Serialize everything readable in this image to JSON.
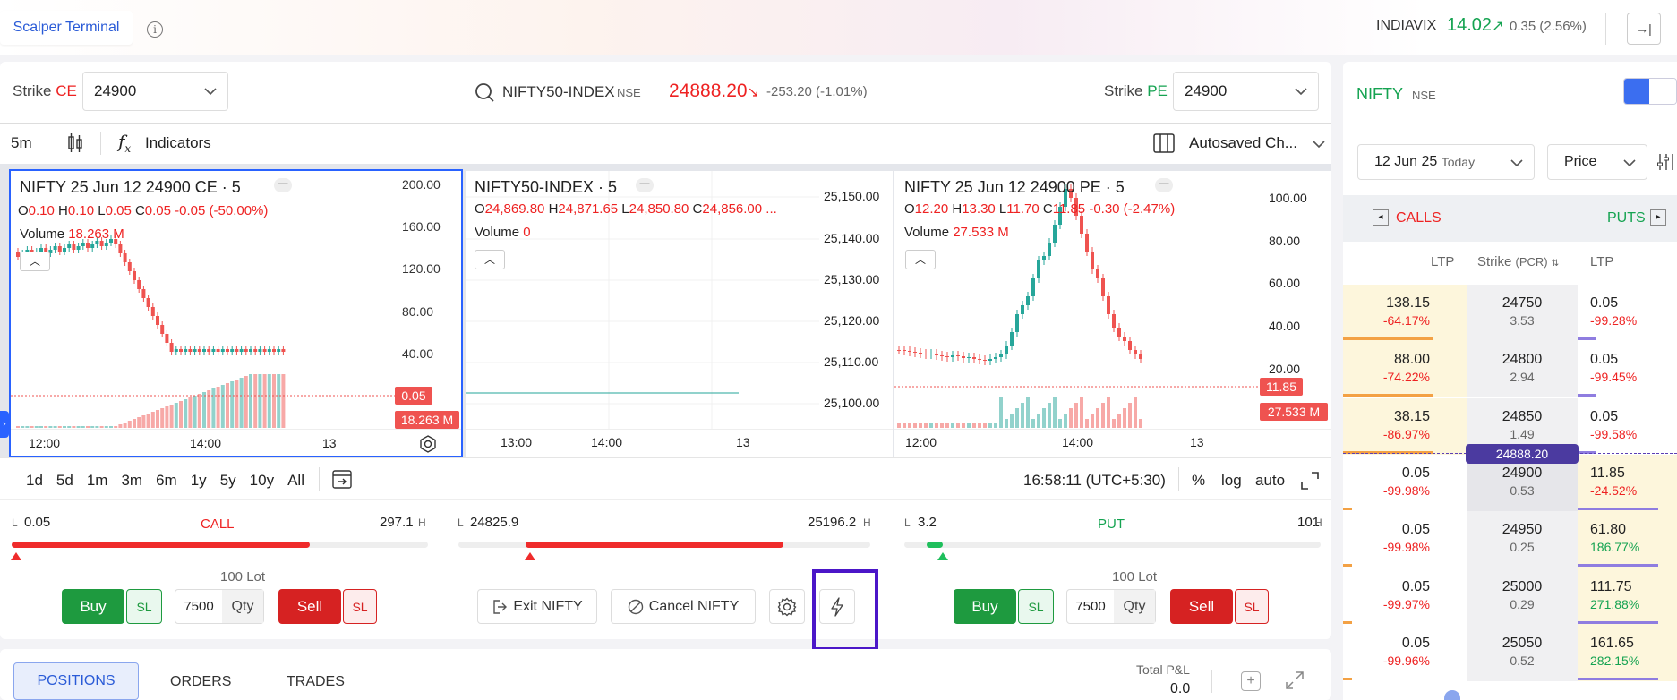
{
  "header": {
    "tab": "Scalper Terminal",
    "info_icon": "i",
    "vix_label": "INDIAVIX",
    "vix_value": "14.02",
    "vix_arrow": "↗",
    "vix_change": "0.35 (2.56%)",
    "collapse_icon": "→|"
  },
  "instrument_bar": {
    "strike_ce_label": "Strike",
    "ce": "CE",
    "strike_ce_value": "24900",
    "search_symbol": "NIFTY50-INDEX",
    "exchange": "NSE",
    "ltp": "24888.20",
    "ltp_arrow": "↘",
    "ltp_change": "-253.20 (-1.01%)",
    "strike_pe_label": "Strike",
    "pe": "PE",
    "strike_pe_value": "24900"
  },
  "toolbar": {
    "interval": "5m",
    "indicators": "Indicators",
    "layout": "Autosaved Ch..."
  },
  "charts": {
    "ce": {
      "title": "NIFTY 25 Jun 12 24900 CE · 5",
      "o": "0.10",
      "h": "0.10",
      "l": "0.05",
      "c": "0.05",
      "chg": "-0.05 (-50.00%)",
      "volume_label": "Volume",
      "volume_value": "18.263 M",
      "price_tag": "0.05",
      "vol_tag": "18.263 M",
      "yticks": [
        "200.00",
        "160.00",
        "120.00",
        "80.00",
        "40.00"
      ],
      "xticks": [
        "12:00",
        "14:00",
        "13"
      ]
    },
    "index": {
      "title": "NIFTY50-INDEX · 5",
      "o": "24,869.80",
      "h": "24,871.65",
      "l": "24,850.80",
      "c": "24,856.00 ...",
      "volume_label": "Volume",
      "volume_value": "0",
      "yticks": [
        "25,150.00",
        "25,140.00",
        "25,130.00",
        "25,120.00",
        "25,110.00",
        "25,100.00"
      ],
      "xticks": [
        "13:00",
        "14:00",
        "13"
      ]
    },
    "pe": {
      "title": "NIFTY 25 Jun 12 24900 PE · 5",
      "o": "12.20",
      "h": "13.30",
      "l": "11.70",
      "c": "11.85",
      "chg": "-0.30 (-2.47%)",
      "volume_label": "Volume",
      "volume_value": "27.533 M",
      "price_tag": "11.85",
      "vol_tag": "27.533 M",
      "yticks": [
        "100.00",
        "80.00",
        "60.00",
        "40.00",
        "20.00"
      ],
      "xticks": [
        "12:00",
        "14:00",
        "13"
      ]
    }
  },
  "ranges": {
    "items": [
      "1d",
      "5d",
      "1m",
      "3m",
      "6m",
      "1y",
      "5y",
      "10y",
      "All"
    ],
    "clock": "16:58:11 (UTC+5:30)",
    "pct": "%",
    "log": "log",
    "auto": "auto"
  },
  "order": {
    "call": {
      "label": "CALL",
      "low": "0.05",
      "high": "297.1",
      "l": "L",
      "h": "H",
      "lot": "100 Lot",
      "qty": "7500",
      "qty_label": "Qty",
      "fill": 0.98
    },
    "index": {
      "low": "24825.9",
      "high": "25196.2",
      "l": "L",
      "h": "H",
      "fill": 0.98
    },
    "put": {
      "label": "PUT",
      "low": "3.2",
      "high": "101",
      "l": "L",
      "h": "H",
      "lot": "100 Lot",
      "qty": "7500",
      "qty_label": "Qty",
      "fill": 0.04
    },
    "buy": "Buy",
    "sell": "Sell",
    "sl": "SL",
    "exit": "Exit NIFTY",
    "cancel": "Cancel NIFTY"
  },
  "bottom": {
    "tabs": [
      "POSITIONS",
      "ORDERS",
      "TRADES"
    ],
    "pnl_label": "Total P&L",
    "pnl_value": "0.0"
  },
  "option_chain": {
    "symbol": "NIFTY",
    "exchange": "NSE",
    "expiry": "12 Jun 25",
    "expiry_tag": "Today",
    "mode": "Price",
    "calls": "CALLS",
    "puts": "PUTS",
    "col_ltp": "LTP",
    "col_strike": "Strike",
    "col_pcr": "(PCR)",
    "col_ltp2": "LTP",
    "spot_tag": "24888.20",
    "rows": [
      {
        "c_ltp": "138.15",
        "c_chg": "-64.17%",
        "strike": "24750",
        "pcr": "3.53",
        "p_ltp": "0.05",
        "p_chg": "-99.28%"
      },
      {
        "c_ltp": "88.00",
        "c_chg": "-74.22%",
        "strike": "24800",
        "pcr": "2.94",
        "p_ltp": "0.05",
        "p_chg": "-99.45%"
      },
      {
        "c_ltp": "38.15",
        "c_chg": "-86.97%",
        "strike": "24850",
        "pcr": "1.49",
        "p_ltp": "0.05",
        "p_chg": "-99.58%"
      },
      {
        "c_ltp": "0.05",
        "c_chg": "-99.98%",
        "strike": "24900",
        "pcr": "0.53",
        "p_ltp": "11.85",
        "p_chg": "-24.52%"
      },
      {
        "c_ltp": "0.05",
        "c_chg": "-99.98%",
        "strike": "24950",
        "pcr": "0.25",
        "p_ltp": "61.80",
        "p_chg": "186.77%"
      },
      {
        "c_ltp": "0.05",
        "c_chg": "-99.97%",
        "strike": "25000",
        "pcr": "0.29",
        "p_ltp": "111.75",
        "p_chg": "271.88%"
      },
      {
        "c_ltp": "0.05",
        "c_chg": "-99.96%",
        "strike": "25050",
        "pcr": "0.52",
        "p_ltp": "161.65",
        "p_chg": "282.15%"
      }
    ]
  },
  "colors": {
    "up": "#26a69a",
    "down": "#ef5350",
    "accent": "#2a5bd7",
    "highlight": "#5b21b6"
  }
}
